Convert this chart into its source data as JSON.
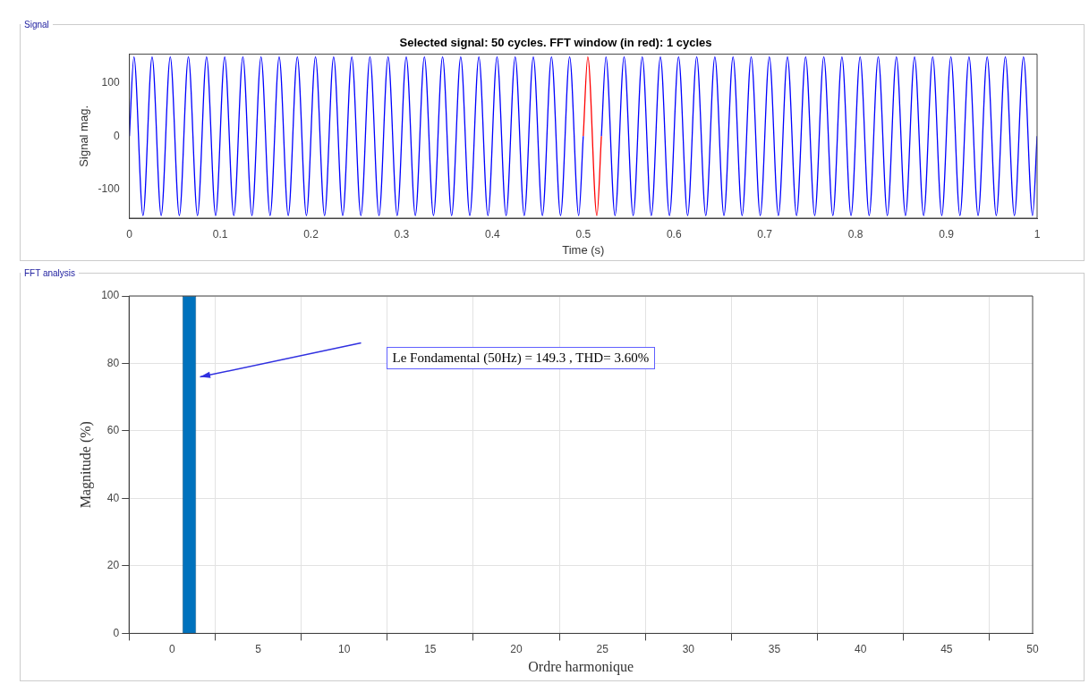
{
  "chart_data": [
    {
      "type": "line",
      "title": "Selected signal: 50 cycles. FFT window (in red): 1 cycles",
      "xlabel": "Time (s)",
      "ylabel": "Signal mag.",
      "annotations": [
        "Signal"
      ],
      "xlim": [
        0,
        1
      ],
      "xticks": [
        0,
        0.1,
        0.2,
        0.3,
        0.4,
        0.5,
        0.6,
        0.7,
        0.8,
        0.9,
        1
      ],
      "ylim": [
        -155,
        155
      ],
      "yticks": [
        -100,
        0,
        100
      ],
      "legend": false,
      "series": [
        {
          "color": "#0000ff",
          "x": [
            0,
            0.005,
            0.015,
            0.025,
            0.035,
            0.045,
            0.055,
            0.065,
            0.075,
            0.085,
            0.095,
            0.105,
            0.115,
            0.125,
            0.135,
            0.145,
            0.155,
            0.165,
            0.175,
            0.185,
            0.195,
            0.205,
            0.215,
            0.225,
            0.235,
            0.245,
            0.255,
            0.265,
            0.275,
            0.285,
            0.295,
            0.305,
            0.315,
            0.325,
            0.335,
            0.345,
            0.355,
            0.365,
            0.375,
            0.385,
            0.395,
            0.405,
            0.415,
            0.425,
            0.435,
            0.445,
            0.455,
            0.465,
            0.475,
            0.485,
            0.495,
            0.5,
            0.51,
            0.52,
            0.525,
            0.535,
            0.545,
            0.555,
            0.565,
            0.575,
            0.585,
            0.595,
            0.605,
            0.615,
            0.625,
            0.635,
            0.645,
            0.655,
            0.665,
            0.675,
            0.685,
            0.695,
            0.705,
            0.715,
            0.725,
            0.735,
            0.745,
            0.755,
            0.765,
            0.775,
            0.785,
            0.795,
            0.805,
            0.815,
            0.825,
            0.835,
            0.845,
            0.855,
            0.865,
            0.875,
            0.885,
            0.895,
            0.905,
            0.915,
            0.925,
            0.935,
            0.945,
            0.955,
            0.965,
            0.975,
            0.985,
            0.995,
            1
          ],
          "values": [
            0,
            150,
            -150,
            150,
            -150,
            150,
            -150,
            150,
            -150,
            150,
            -150,
            150,
            -150,
            150,
            -150,
            150,
            -150,
            150,
            -150,
            150,
            -150,
            150,
            -150,
            150,
            -150,
            150,
            -150,
            150,
            -150,
            150,
            -150,
            150,
            -150,
            150,
            -150,
            150,
            -150,
            150,
            -150,
            150,
            -150,
            150,
            -150,
            150,
            -150,
            150,
            -150,
            150,
            -150,
            150,
            -150,
            0,
            null,
            0,
            150,
            -150,
            150,
            -150,
            150,
            -150,
            150,
            -150,
            150,
            -150,
            150,
            -150,
            150,
            -150,
            150,
            -150,
            150,
            -150,
            150,
            -150,
            150,
            -150,
            150,
            -150,
            150,
            -150,
            150,
            -150,
            150,
            -150,
            150,
            -150,
            150,
            -150,
            150,
            -150,
            150,
            -150,
            150,
            -150,
            150,
            -150,
            150,
            -150,
            150,
            -150,
            150,
            -150,
            0
          ]
        },
        {
          "color": "#ff0000",
          "x": [
            0.5,
            0.505,
            0.515,
            0.52
          ],
          "values": [
            0,
            150,
            -150,
            0
          ]
        }
      ]
    },
    {
      "type": "bar",
      "xlabel": "Ordre harmonique",
      "ylabel": "Magnitude (%)",
      "annotations": [
        "FFT analysis",
        "Le Fondamental (50Hz) = 149.3 , THD= 3.60%"
      ],
      "x": [
        0,
        1,
        2,
        3,
        4,
        5,
        6,
        7,
        8,
        9,
        10,
        11,
        12,
        13,
        14,
        15,
        16,
        17,
        18,
        19,
        20,
        21,
        22,
        23,
        24,
        25,
        26,
        27,
        28,
        29,
        30,
        31,
        32,
        33,
        34,
        35,
        36,
        37,
        38,
        39,
        40,
        41,
        42,
        43,
        44,
        45,
        46,
        47,
        48,
        49,
        50
      ],
      "values": [
        0,
        100,
        0,
        0,
        0,
        0,
        0,
        0,
        0,
        0,
        0,
        0,
        0,
        0,
        0,
        0,
        0,
        0,
        0,
        0,
        0,
        0,
        0,
        0,
        0,
        0,
        0,
        0,
        0,
        0,
        0,
        0,
        0,
        0,
        0,
        0,
        0,
        0,
        0,
        0,
        0,
        0,
        0,
        0,
        0,
        0,
        0,
        0,
        0,
        0,
        0
      ],
      "color": "#0072bd",
      "xlim": [
        -2.5,
        50
      ],
      "xticks": [
        0,
        5,
        10,
        15,
        20,
        25,
        30,
        35,
        40,
        45,
        50
      ],
      "ylim": [
        0,
        100
      ],
      "yticks": [
        0,
        20,
        40,
        60,
        80,
        100
      ],
      "grid": true,
      "legend": false
    }
  ]
}
